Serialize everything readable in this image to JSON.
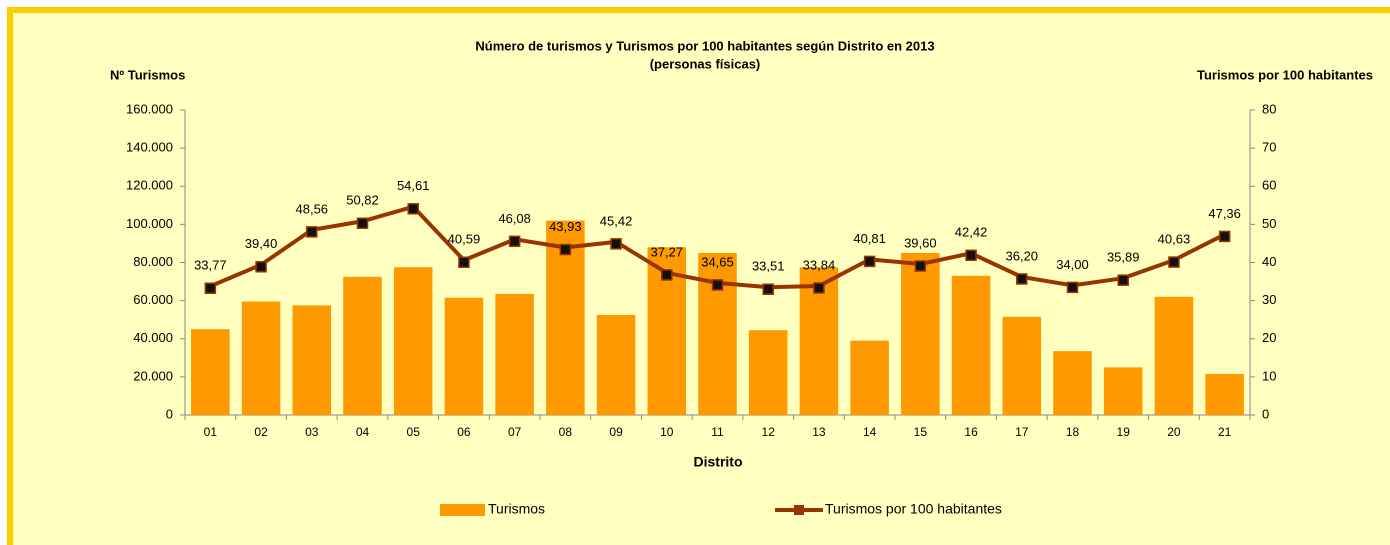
{
  "chart_data": {
    "type": "bar_line",
    "title": "Número de turismos y Turismos por 100 habitantes según Distrito en 2013",
    "subtitle": "(personas físicas)",
    "y_label": "Nº Turismos",
    "y2_label": "Turismos por 100 habitantes",
    "x_label": "Distrito",
    "categories": [
      "01",
      "02",
      "03",
      "04",
      "05",
      "06",
      "07",
      "08",
      "09",
      "10",
      "11",
      "12",
      "13",
      "14",
      "15",
      "16",
      "17",
      "18",
      "19",
      "20",
      "21"
    ],
    "series": [
      {
        "name": "Turismos",
        "type": "bar",
        "color": "#ff9900",
        "values": [
          45000,
          59500,
          57500,
          72500,
          77500,
          61500,
          63500,
          102000,
          52500,
          88000,
          85000,
          44500,
          77500,
          39000,
          85000,
          73000,
          51500,
          33500,
          25000,
          62000,
          21500
        ]
      },
      {
        "name": "Turismos por 100 habitantes",
        "type": "line",
        "axis": "y2",
        "color": "#993300",
        "values": [
          33.77,
          39.4,
          48.56,
          50.82,
          54.61,
          40.59,
          46.08,
          43.93,
          45.42,
          37.27,
          34.65,
          33.51,
          33.84,
          40.81,
          39.6,
          42.42,
          36.2,
          34.0,
          35.89,
          40.63,
          47.36
        ],
        "value_labels": [
          "33,77",
          "39,40",
          "48,56",
          "50,82",
          "54,61",
          "40,59",
          "46,08",
          "43,93",
          "45,42",
          "37,27",
          "34,65",
          "33,51",
          "33,84",
          "40,81",
          "39,60",
          "42,42",
          "36,20",
          "34,00",
          "35,89",
          "40,63",
          "47,36"
        ]
      }
    ],
    "ylim": [
      0,
      160000
    ],
    "yticks": [
      0,
      {
        "value": 20000,
        "label": "20.000"
      },
      {
        "value": 40000,
        "label": "40.000"
      },
      {
        "value": 60000,
        "label": "60.000"
      },
      {
        "value": 80000,
        "label": "80.000"
      },
      {
        "value": 100000,
        "label": "100.000"
      },
      {
        "value": 120000,
        "label": "120.000"
      },
      {
        "value": 140000,
        "label": "140.000"
      },
      {
        "value": 160000,
        "label": "160.000"
      }
    ],
    "y2lim": [
      0,
      80
    ],
    "y2ticks": [
      0,
      10,
      20,
      30,
      40,
      50,
      60,
      70,
      80
    ],
    "grid": false,
    "legend": "bottom"
  }
}
